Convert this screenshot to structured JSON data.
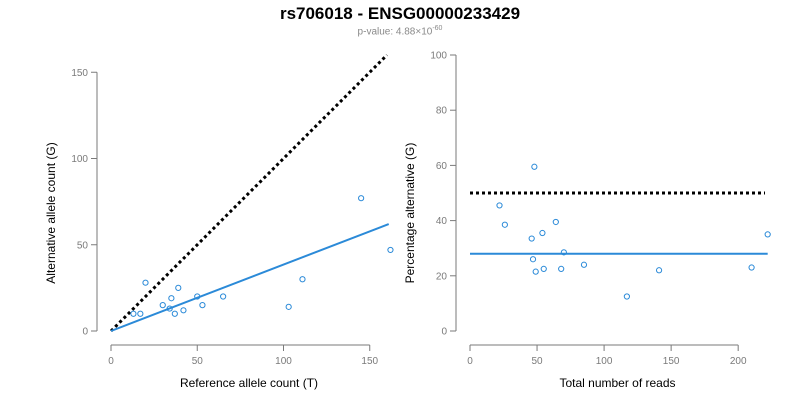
{
  "title": "rs706018 - ENSG00000233429",
  "subtitle": {
    "prefix": "p-value: 4.88×10",
    "exponent": "-60"
  },
  "colors": {
    "points": "#2b8ad8",
    "fit_line": "#2b8ad8",
    "reference_line": "#000000",
    "axes": "#7a7a7a"
  },
  "chart_data": [
    {
      "type": "scatter",
      "xlabel": "Reference allele count (T)",
      "ylabel": "Alternative allele count (G)",
      "xlim": [
        0,
        160
      ],
      "ylim": [
        0,
        160
      ],
      "xticks": [
        0,
        50,
        100,
        150
      ],
      "yticks": [
        0,
        50,
        100,
        150
      ],
      "reference_line": {
        "style": "dotted",
        "points": [
          [
            0,
            0
          ],
          [
            160,
            160
          ]
        ]
      },
      "fit_line": {
        "points": [
          [
            0,
            0
          ],
          [
            161,
            62
          ]
        ]
      },
      "points": [
        {
          "x": 13,
          "y": 10
        },
        {
          "x": 17,
          "y": 10
        },
        {
          "x": 20,
          "y": 28
        },
        {
          "x": 30,
          "y": 15
        },
        {
          "x": 34,
          "y": 13
        },
        {
          "x": 35,
          "y": 19
        },
        {
          "x": 37,
          "y": 10
        },
        {
          "x": 39,
          "y": 25
        },
        {
          "x": 42,
          "y": 12
        },
        {
          "x": 50,
          "y": 20
        },
        {
          "x": 53,
          "y": 15
        },
        {
          "x": 65,
          "y": 20
        },
        {
          "x": 103,
          "y": 14
        },
        {
          "x": 111,
          "y": 30
        },
        {
          "x": 145,
          "y": 77
        },
        {
          "x": 162,
          "y": 47
        }
      ]
    },
    {
      "type": "scatter",
      "xlabel": "Total number of reads",
      "ylabel": "Percentage alternative (G)",
      "xlim": [
        0,
        220
      ],
      "ylim": [
        0,
        100
      ],
      "xticks": [
        0,
        50,
        100,
        150,
        200
      ],
      "yticks": [
        0,
        20,
        40,
        60,
        80,
        100
      ],
      "reference_line": {
        "style": "dotted",
        "points": [
          [
            0,
            50
          ],
          [
            220,
            50
          ]
        ]
      },
      "fit_line": {
        "points": [
          [
            0,
            28
          ],
          [
            222,
            28
          ]
        ]
      },
      "points": [
        {
          "x": 22,
          "y": 45.5
        },
        {
          "x": 26,
          "y": 38.5
        },
        {
          "x": 46,
          "y": 33.5
        },
        {
          "x": 47,
          "y": 26
        },
        {
          "x": 48,
          "y": 59.5
        },
        {
          "x": 49,
          "y": 21.5
        },
        {
          "x": 54,
          "y": 35.5
        },
        {
          "x": 55,
          "y": 22.5
        },
        {
          "x": 64,
          "y": 39.5
        },
        {
          "x": 68,
          "y": 22.5
        },
        {
          "x": 70,
          "y": 28.5
        },
        {
          "x": 85,
          "y": 24
        },
        {
          "x": 117,
          "y": 12.5
        },
        {
          "x": 141,
          "y": 22
        },
        {
          "x": 210,
          "y": 23
        },
        {
          "x": 222,
          "y": 35
        }
      ]
    }
  ]
}
